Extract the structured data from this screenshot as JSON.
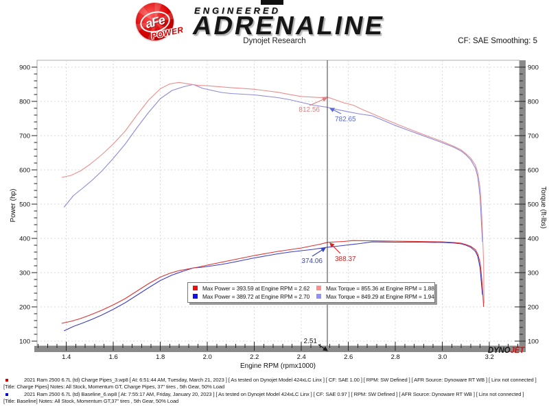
{
  "header": {
    "logo_text": "aFe",
    "logo_sub": "POWER",
    "brand_top": "ENGINEERED",
    "brand_main": "ADRENALINE",
    "title": "Dynojet Research",
    "smoothing_label": "CF: SAE Smoothing: 5"
  },
  "dynojet_logo": {
    "black": "DYNO",
    "red": "JET"
  },
  "chart_data": {
    "type": "line",
    "xlabel": "Engine RPM (rpmx1000)",
    "ylabel_left": "Power (hp)",
    "ylabel_right": "Torque (ft-lbs)",
    "xlim": [
      1.2753,
      3.3278
    ],
    "ylim": [
      86,
      920
    ],
    "x_major_ticks": [
      1.4,
      1.6,
      1.8,
      2.0,
      2.2,
      2.4,
      2.6,
      2.8,
      3.0,
      3.2
    ],
    "y_major_ticks": [
      100,
      200,
      300,
      400,
      500,
      600,
      700,
      800,
      900
    ],
    "x_minor_step": 0.04,
    "y_minor_step": 20,
    "grid": true,
    "legend_position": "bottom-center",
    "cursor": {
      "x": 2.51,
      "label": "2.51"
    },
    "series": [
      {
        "name": "Baseline Torque",
        "color": "#8a8ade",
        "axis": "right",
        "points": [
          [
            1.39,
            491
          ],
          [
            1.43,
            525
          ],
          [
            1.47,
            547
          ],
          [
            1.51,
            570
          ],
          [
            1.55,
            596
          ],
          [
            1.6,
            634
          ],
          [
            1.65,
            675
          ],
          [
            1.7,
            723
          ],
          [
            1.75,
            768
          ],
          [
            1.8,
            808
          ],
          [
            1.85,
            832
          ],
          [
            1.9,
            843
          ],
          [
            1.94,
            849.3
          ],
          [
            1.98,
            838
          ],
          [
            2.02,
            832
          ],
          [
            2.06,
            826
          ],
          [
            2.1,
            823
          ],
          [
            2.15,
            821
          ],
          [
            2.2,
            819
          ],
          [
            2.25,
            815
          ],
          [
            2.3,
            811
          ],
          [
            2.35,
            805
          ],
          [
            2.4,
            797
          ],
          [
            2.45,
            789
          ],
          [
            2.51,
            782.7
          ],
          [
            2.55,
            776.5
          ],
          [
            2.6,
            769.6
          ],
          [
            2.65,
            763
          ],
          [
            2.7,
            758.1
          ],
          [
            2.75,
            744
          ],
          [
            2.8,
            729.6
          ],
          [
            2.85,
            716.8
          ],
          [
            2.9,
            704.5
          ],
          [
            2.95,
            691.7
          ],
          [
            3.0,
            679.3
          ],
          [
            3.05,
            665.5
          ],
          [
            3.08,
            654.8
          ],
          [
            3.1,
            643.8
          ],
          [
            3.12,
            629.6
          ],
          [
            3.14,
            605.5
          ],
          [
            3.15,
            580.2
          ],
          [
            3.16,
            523.5
          ],
          [
            3.165,
            456.3
          ],
          [
            3.17,
            389.3
          ]
        ]
      },
      {
        "name": "Charge Pipes Torque",
        "color": "#ec8d8d",
        "axis": "right",
        "points": [
          [
            1.38,
            578
          ],
          [
            1.42,
            584
          ],
          [
            1.46,
            597
          ],
          [
            1.5,
            616
          ],
          [
            1.55,
            644
          ],
          [
            1.6,
            676
          ],
          [
            1.65,
            713
          ],
          [
            1.7,
            760
          ],
          [
            1.75,
            804
          ],
          [
            1.8,
            837
          ],
          [
            1.84,
            851
          ],
          [
            1.88,
            855.4
          ],
          [
            1.92,
            850.7
          ],
          [
            1.96,
            846.8
          ],
          [
            2.0,
            845.6
          ],
          [
            2.05,
            842.9
          ],
          [
            2.1,
            840.3
          ],
          [
            2.15,
            837.9
          ],
          [
            2.2,
            835.5
          ],
          [
            2.25,
            831
          ],
          [
            2.3,
            826.6
          ],
          [
            2.35,
            820.2
          ],
          [
            2.4,
            814.1
          ],
          [
            2.45,
            812.4
          ],
          [
            2.48,
            811.1
          ],
          [
            2.51,
            812.6
          ],
          [
            2.55,
            803.3
          ],
          [
            2.58,
            795.9
          ],
          [
            2.62,
            789
          ],
          [
            2.66,
            776
          ],
          [
            2.7,
            764.5
          ],
          [
            2.75,
            749.6
          ],
          [
            2.8,
            735.3
          ],
          [
            2.85,
            721.5
          ],
          [
            2.9,
            708.1
          ],
          [
            2.95,
            695.2
          ],
          [
            3.0,
            682.8
          ],
          [
            3.05,
            668.1
          ],
          [
            3.08,
            658.2
          ],
          [
            3.1,
            647.2
          ],
          [
            3.12,
            634.6
          ],
          [
            3.14,
            613.9
          ],
          [
            3.15,
            591.9
          ],
          [
            3.16,
            548.5
          ],
          [
            3.165,
            497.8
          ],
          [
            3.17,
            422.5
          ],
          [
            3.175,
            330.8
          ],
          [
            3.177,
            210
          ]
        ]
      },
      {
        "name": "Baseline Power",
        "color": "#3b3bc8",
        "axis": "left",
        "points": [
          [
            1.39,
            130
          ],
          [
            1.43,
            143
          ],
          [
            1.47,
            153
          ],
          [
            1.51,
            164
          ],
          [
            1.55,
            176
          ],
          [
            1.6,
            193
          ],
          [
            1.65,
            212
          ],
          [
            1.7,
            234
          ],
          [
            1.75,
            256
          ],
          [
            1.8,
            277
          ],
          [
            1.85,
            293
          ],
          [
            1.9,
            305
          ],
          [
            1.94,
            313.7
          ],
          [
            1.98,
            316
          ],
          [
            2.02,
            320
          ],
          [
            2.06,
            324
          ],
          [
            2.1,
            329
          ],
          [
            2.15,
            336
          ],
          [
            2.2,
            343
          ],
          [
            2.25,
            349
          ],
          [
            2.3,
            355
          ],
          [
            2.35,
            360
          ],
          [
            2.4,
            364
          ],
          [
            2.45,
            368
          ],
          [
            2.51,
            374.1
          ],
          [
            2.55,
            377
          ],
          [
            2.6,
            381
          ],
          [
            2.65,
            385
          ],
          [
            2.7,
            389.7
          ],
          [
            2.75,
            389.5
          ],
          [
            2.8,
            389
          ],
          [
            2.85,
            389
          ],
          [
            2.9,
            389
          ],
          [
            2.95,
            388.5
          ],
          [
            3.0,
            388
          ],
          [
            3.05,
            386.5
          ],
          [
            3.08,
            384
          ],
          [
            3.1,
            380
          ],
          [
            3.12,
            374
          ],
          [
            3.14,
            362
          ],
          [
            3.15,
            348
          ],
          [
            3.16,
            315
          ],
          [
            3.165,
            275
          ],
          [
            3.17,
            235
          ]
        ]
      },
      {
        "name": "Charge Pipes Power",
        "color": "#dd3030",
        "axis": "left",
        "points": [
          [
            1.38,
            152
          ],
          [
            1.42,
            158
          ],
          [
            1.46,
            166
          ],
          [
            1.5,
            176
          ],
          [
            1.55,
            190
          ],
          [
            1.6,
            206
          ],
          [
            1.65,
            224
          ],
          [
            1.7,
            246
          ],
          [
            1.75,
            268
          ],
          [
            1.8,
            287
          ],
          [
            1.84,
            298
          ],
          [
            1.88,
            306
          ],
          [
            1.92,
            311
          ],
          [
            1.96,
            316
          ],
          [
            2.0,
            322
          ],
          [
            2.05,
            329
          ],
          [
            2.1,
            336
          ],
          [
            2.15,
            343
          ],
          [
            2.2,
            350
          ],
          [
            2.25,
            356
          ],
          [
            2.3,
            362
          ],
          [
            2.35,
            367
          ],
          [
            2.4,
            372
          ],
          [
            2.45,
            379
          ],
          [
            2.48,
            383
          ],
          [
            2.51,
            388.4
          ],
          [
            2.55,
            390
          ],
          [
            2.58,
            391
          ],
          [
            2.62,
            393.6
          ],
          [
            2.66,
            393.2
          ],
          [
            2.7,
            393
          ],
          [
            2.75,
            392.5
          ],
          [
            2.8,
            392
          ],
          [
            2.85,
            391.5
          ],
          [
            2.9,
            391
          ],
          [
            2.95,
            390.5
          ],
          [
            3.0,
            390
          ],
          [
            3.05,
            388
          ],
          [
            3.08,
            386
          ],
          [
            3.1,
            382
          ],
          [
            3.12,
            377
          ],
          [
            3.14,
            367
          ],
          [
            3.15,
            355
          ],
          [
            3.16,
            330
          ],
          [
            3.165,
            300
          ],
          [
            3.17,
            255
          ],
          [
            3.175,
            200
          ]
        ]
      }
    ],
    "annotations": [
      {
        "text": "812.56",
        "color": "#e07f7f",
        "anchor": "end",
        "label": [
          466,
          163
        ],
        "arrow_from": [
          451,
          154
        ],
        "arrow_to": [
          476,
          143
        ]
      },
      {
        "text": "782.65",
        "color": "#5a6ad8",
        "anchor": "start",
        "label": [
          488,
          177
        ],
        "arrow_from": [
          497,
          166
        ],
        "arrow_to": [
          481,
          158
        ]
      },
      {
        "text": "374.06",
        "color": "#3646c6",
        "anchor": "end",
        "label": [
          470,
          384
        ],
        "arrow_from": [
          455,
          374
        ],
        "arrow_to": [
          474,
          362
        ]
      },
      {
        "text": "388.37",
        "color": "#d52525",
        "anchor": "start",
        "label": [
          488,
          381
        ],
        "arrow_from": [
          496,
          370
        ],
        "arrow_to": [
          481,
          355
        ]
      },
      {
        "text": "2.51",
        "color": "#1a1a1a",
        "anchor": "end",
        "label": [
          462,
          501
        ],
        "arrow_from": [
          464,
          503
        ],
        "arrow_to": [
          477,
          512
        ]
      }
    ]
  },
  "legend": {
    "items": [
      {
        "color": "#ee1111",
        "label": "Max Power = 393.59 at Engine RPM = 2.62"
      },
      {
        "color": "#ff8f8f",
        "label": "Max Torque = 855.36 at Engine RPM = 1.88"
      },
      {
        "color": "#1111ee",
        "label": "Max Power = 389.72 at Engine RPM = 2.70"
      },
      {
        "color": "#8f8fff",
        "label": "Max Torque = 849.29 at Engine RPM = 1.94"
      }
    ]
  },
  "footer": {
    "runs": [
      {
        "marker_color": "#cc0000",
        "line1": "2021 Ram 2500 6.7L (td) Charge Pipes_3.wp8 [ At: 6:51:44 AM, Tuesday, March 21, 2023 ] [ As tested on Dynojet Model 424xLC Linx ] [ CF: SAE 1.00 ] [ RPM: SW Defined ] [ AFR Source: Dynoware RT WB ] [ Linx not connected ]",
        "line2": "[Title: Charge Pipes]  Notes: All Stock, Momentum GT, Charge Pipes, 37\" tires , 5th Gear, 50% Load"
      },
      {
        "marker_color": "#0000cc",
        "line1": "2021 Ram 2500 6.7L (td) Baseline_6.wp8 [ At: 7:55:17 AM, Friday, January 20, 2023 ] [ As tested on Dynojet Model 424xLC Linx ] [ CF: SAE 0.97 ] [ RPM: SW Defined ] [ AFR Source: Dynoware RT WB ] [ Linx not connected ]",
        "line2": "[Title: Baseline]  Notes: All Stock, Momentum GT,37\" tires , 5th Gear, 50% Load"
      }
    ]
  }
}
